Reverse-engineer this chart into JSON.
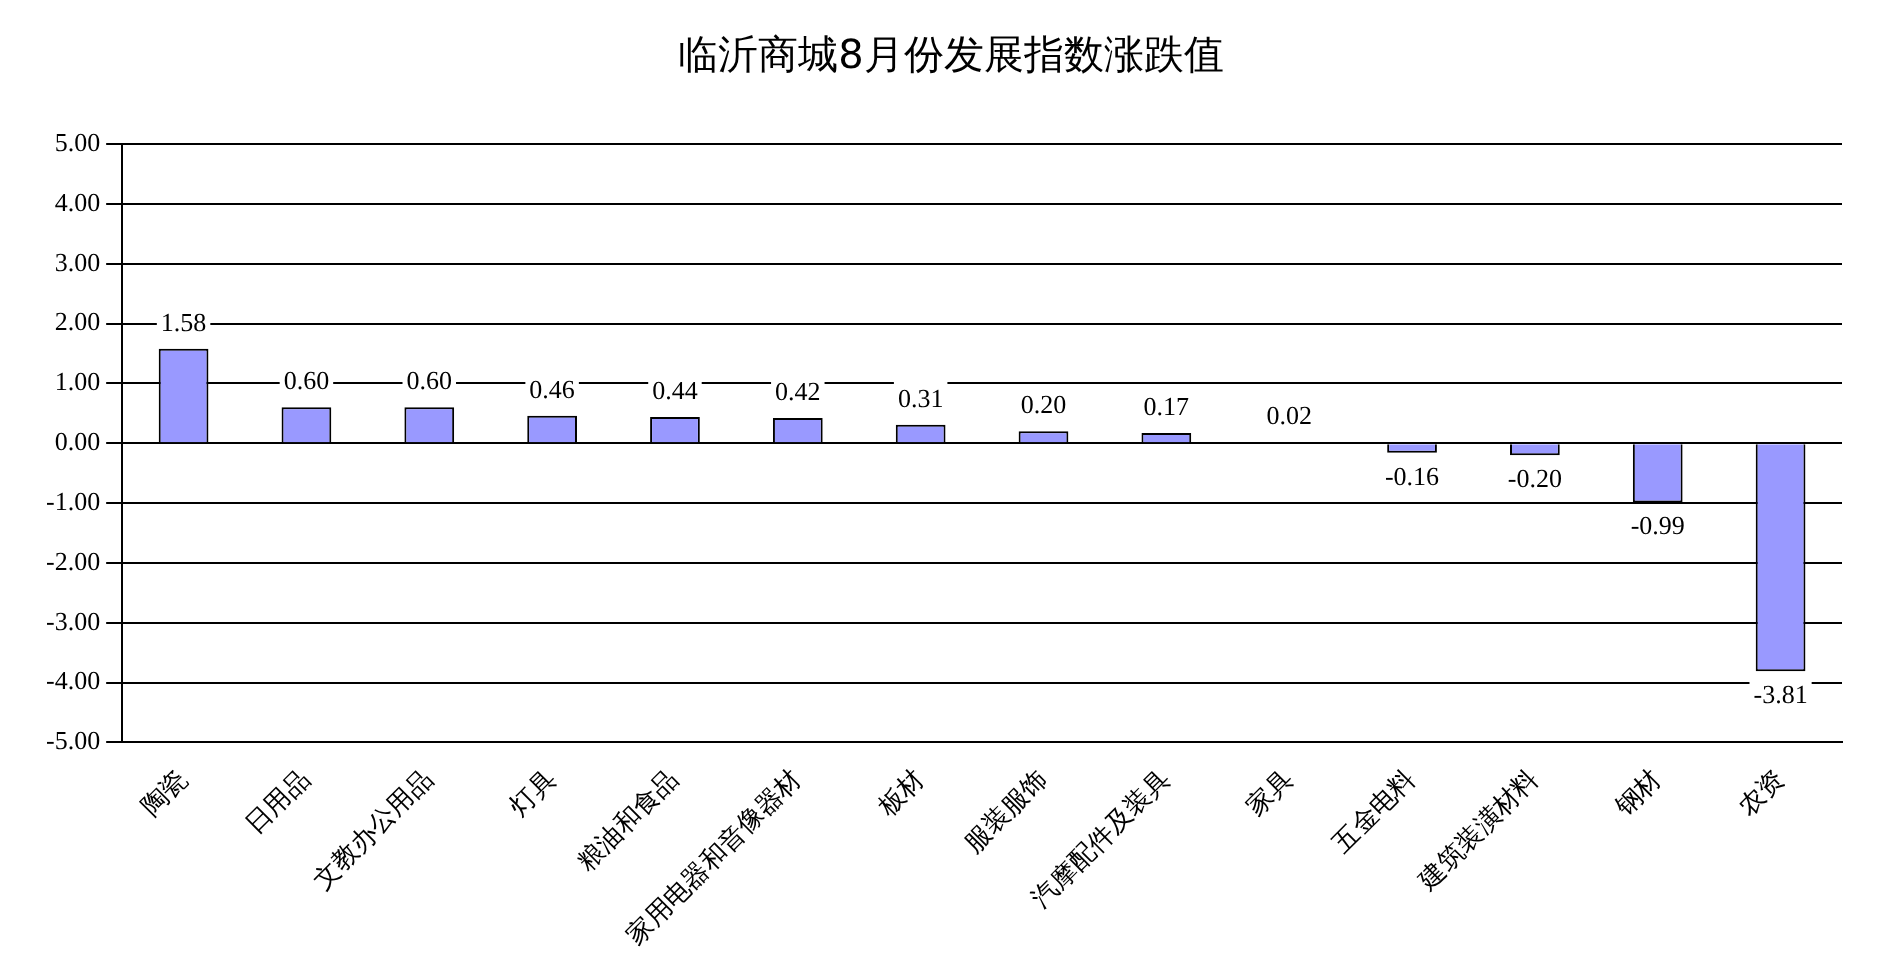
{
  "chart_data": {
    "type": "bar",
    "title": "临沂商城8月份发展指数涨跌值",
    "categories": [
      "陶瓷",
      "日用品",
      "文教办公用品",
      "灯具",
      "粮油和食品",
      "家用电器和音像器材",
      "板材",
      "服装服饰",
      "汽摩配件及装具",
      "家具",
      "五金电料",
      "建筑装潢材料",
      "钢材",
      "农资"
    ],
    "values": [
      1.58,
      0.6,
      0.6,
      0.46,
      0.44,
      0.42,
      0.31,
      0.2,
      0.17,
      0.02,
      -0.16,
      -0.2,
      -0.99,
      -3.81
    ],
    "value_labels": [
      "1.58",
      "0.60",
      "0.60",
      "0.46",
      "0.44",
      "0.42",
      "0.31",
      "0.20",
      "0.17",
      "0.02",
      "-0.16",
      "-0.20",
      "-0.99",
      "-3.81"
    ],
    "color": "#9999ff",
    "ylim": [
      -5,
      5
    ],
    "yticks": [
      {
        "value": -5,
        "label": "-5.00"
      },
      {
        "value": -4,
        "label": "-4.00"
      },
      {
        "value": -3,
        "label": "-3.00"
      },
      {
        "value": -2,
        "label": "-2.00"
      },
      {
        "value": -1,
        "label": "-1.00"
      },
      {
        "value": 0,
        "label": "0.00"
      },
      {
        "value": 1,
        "label": "1.00"
      },
      {
        "value": 2,
        "label": "2.00"
      },
      {
        "value": 3,
        "label": "3.00"
      },
      {
        "value": 4,
        "label": "4.00"
      },
      {
        "value": 5,
        "label": "5.00"
      }
    ],
    "grid": "y"
  }
}
